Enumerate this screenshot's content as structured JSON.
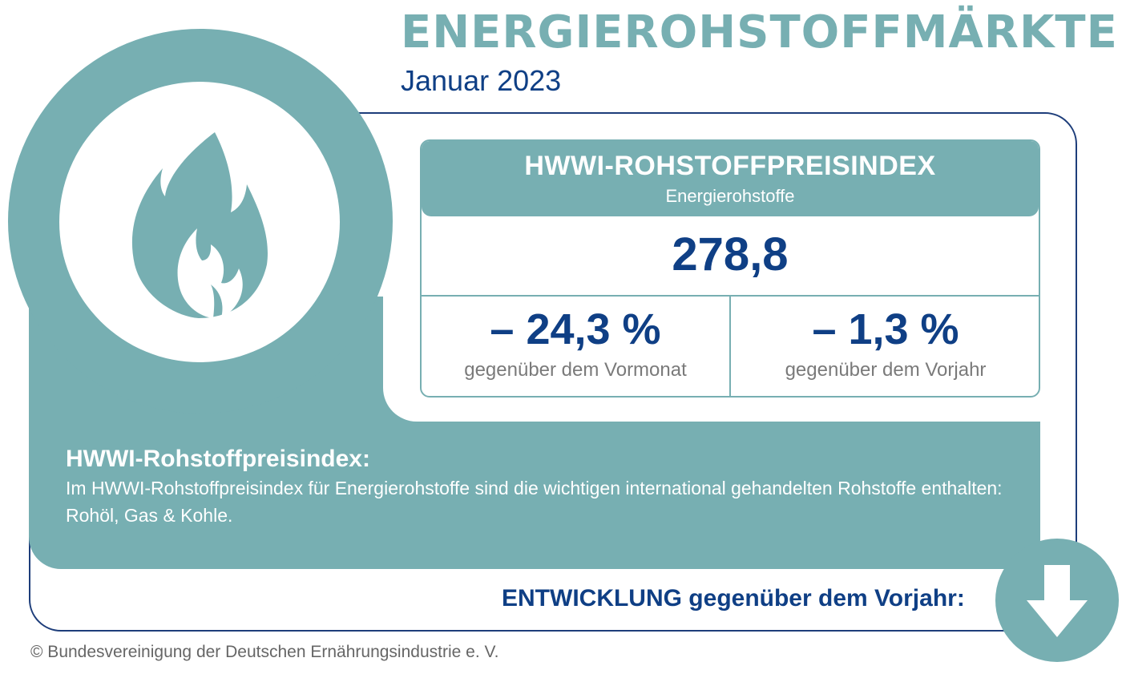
{
  "header": {
    "title": "ENERGIEROHSTOFFMÄRKTE",
    "period": "Januar 2023"
  },
  "index_box": {
    "title": "HWWI-ROHSTOFFPREISINDEX",
    "subtitle": "Energierohstoffe",
    "value": "278,8",
    "change_month": {
      "value": "– 24,3 %",
      "label": "gegenüber dem Vormonat"
    },
    "change_year": {
      "value": "– 1,3 %",
      "label": "gegenüber dem Vorjahr"
    }
  },
  "description": {
    "heading": "HWWI-Rohstoffpreisindex:",
    "text": "Im HWWI-Rohstoffpreisindex für Energierohstoffe sind die wichtigen international gehandelten Rohstoffe enthalten: Rohöl, Gas & Kohle."
  },
  "trend": {
    "label": "ENTWICKLUNG gegenüber dem Vorjahr:",
    "direction": "down",
    "icon": "arrow-down-icon"
  },
  "footer": {
    "copyright": "© Bundesvereinigung der Deutschen Ernährungsindustrie e. V."
  },
  "icons": {
    "main": "flame-icon"
  },
  "colors": {
    "teal": "#77afb2",
    "navy": "#0f3f85",
    "grey_text": "#7a7a7a"
  }
}
